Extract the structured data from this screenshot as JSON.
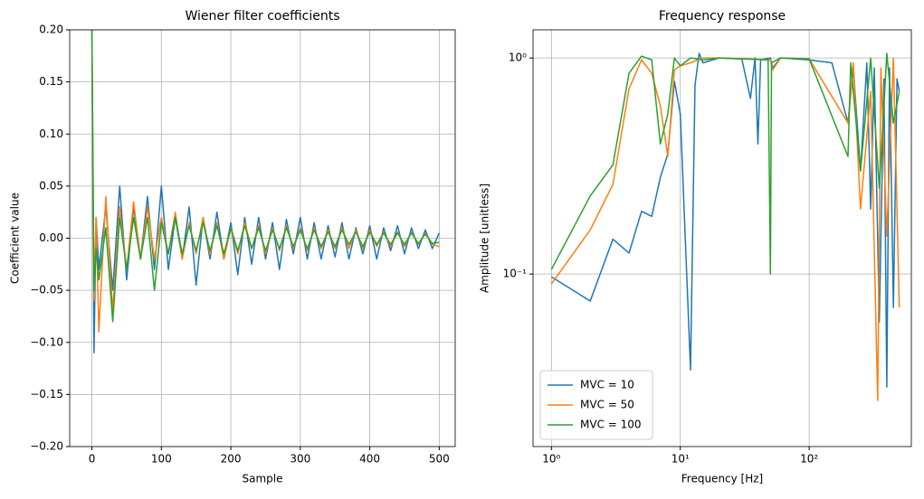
{
  "chart_data": [
    {
      "type": "line",
      "title": "Wiener filter coefficients",
      "xlabel": "Sample",
      "ylabel": "Coefficient value",
      "xlim": [
        -32,
        523
      ],
      "ylim": [
        -0.2,
        0.2
      ],
      "xticks": [
        0,
        100,
        200,
        300,
        400,
        500
      ],
      "yticks": [
        {
          "value": -0.2,
          "label": "−0.20"
        },
        {
          "value": -0.15,
          "label": "−0.15"
        },
        {
          "value": -0.1,
          "label": "−0.10"
        },
        {
          "value": -0.05,
          "label": "−0.05"
        },
        {
          "value": 0,
          "label": "0.00"
        },
        {
          "value": 0.05,
          "label": "0.05"
        },
        {
          "value": 0.1,
          "label": "0.10"
        },
        {
          "value": 0.15,
          "label": "0.15"
        },
        {
          "value": 0.2,
          "label": "0.20"
        }
      ],
      "grid": true,
      "x": [
        0,
        3,
        6,
        10,
        20,
        30,
        40,
        50,
        60,
        70,
        80,
        90,
        100,
        110,
        120,
        130,
        140,
        150,
        160,
        170,
        180,
        190,
        200,
        210,
        220,
        230,
        240,
        250,
        260,
        270,
        280,
        290,
        300,
        310,
        320,
        330,
        340,
        350,
        360,
        370,
        380,
        390,
        400,
        410,
        420,
        430,
        440,
        450,
        460,
        470,
        480,
        490,
        500
      ],
      "series": [
        {
          "color": "#1f77b4",
          "values": [
            0.2,
            -0.11,
            0.02,
            -0.03,
            0.03,
            -0.05,
            0.05,
            -0.04,
            0.03,
            -0.02,
            0.04,
            -0.03,
            0.05,
            -0.03,
            0.02,
            -0.02,
            0.03,
            -0.045,
            0.02,
            -0.02,
            0.025,
            -0.02,
            0.015,
            -0.035,
            0.02,
            -0.025,
            0.02,
            -0.02,
            0.015,
            -0.03,
            0.018,
            -0.015,
            0.02,
            -0.02,
            0.015,
            -0.02,
            0.012,
            -0.018,
            0.015,
            -0.02,
            0.01,
            -0.015,
            0.012,
            -0.02,
            0.01,
            -0.012,
            0.012,
            -0.015,
            0.01,
            -0.01,
            0.008,
            -0.01,
            0.005
          ]
        },
        {
          "color": "#ff7f0e",
          "values": [
            0.2,
            -0.06,
            0.02,
            -0.09,
            0.04,
            -0.07,
            0.03,
            -0.03,
            0.035,
            -0.02,
            0.03,
            -0.02,
            0.02,
            -0.015,
            0.025,
            -0.02,
            0.015,
            -0.015,
            0.02,
            -0.015,
            0.015,
            -0.02,
            0.01,
            -0.015,
            0.015,
            -0.01,
            0.012,
            -0.015,
            0.01,
            -0.012,
            0.012,
            -0.01,
            0.01,
            -0.012,
            0.01,
            -0.01,
            0.008,
            -0.01,
            0.01,
            -0.01,
            0.008,
            -0.01,
            0.008,
            -0.008,
            0.006,
            -0.008,
            0.006,
            -0.008,
            0.006,
            -0.006,
            0.005,
            -0.006,
            -0.008
          ]
        },
        {
          "color": "#2ca02c",
          "values": [
            0.2,
            -0.05,
            -0.01,
            -0.04,
            0.01,
            -0.08,
            0.02,
            -0.03,
            0.02,
            -0.02,
            0.02,
            -0.05,
            0.015,
            -0.015,
            0.02,
            -0.015,
            0.012,
            -0.012,
            0.015,
            -0.012,
            0.012,
            -0.015,
            0.01,
            -0.012,
            0.012,
            -0.01,
            0.01,
            -0.012,
            0.008,
            -0.01,
            0.01,
            -0.008,
            0.008,
            -0.01,
            0.008,
            -0.008,
            0.006,
            -0.008,
            0.008,
            -0.006,
            0.006,
            -0.008,
            0.006,
            -0.006,
            0.005,
            -0.006,
            0.005,
            -0.006,
            0.005,
            -0.005,
            0.004,
            -0.005,
            -0.004
          ]
        }
      ]
    },
    {
      "type": "line",
      "title": "Frequency response",
      "xlabel": "Frequency [Hz]",
      "ylabel": "Amplitude [unitless]",
      "xscale": "log",
      "yscale": "log",
      "xlim": [
        0.72,
        620
      ],
      "ylim": [
        0.0159,
        1.35
      ],
      "xticks": [
        {
          "value": 1,
          "label": "10⁰"
        },
        {
          "value": 10,
          "label": "10¹"
        },
        {
          "value": 100,
          "label": "10²"
        }
      ],
      "yticks": [
        {
          "value": 0.1,
          "label": "10⁻¹"
        },
        {
          "value": 1,
          "label": "10⁰"
        }
      ],
      "grid": true,
      "legend": "lower left",
      "series": [
        {
          "name": "MVC = 10",
          "color": "#1f77b4",
          "x": [
            1,
            2,
            3,
            4,
            5,
            6,
            7,
            8,
            9,
            10,
            12,
            13,
            14,
            15,
            20,
            30,
            35,
            38,
            40,
            42,
            50,
            52,
            60,
            100,
            150,
            200,
            220,
            250,
            280,
            300,
            320,
            350,
            380,
            400,
            420,
            450,
            480,
            500
          ],
          "values": [
            0.097,
            0.075,
            0.145,
            0.125,
            0.195,
            0.185,
            0.28,
            0.36,
            0.78,
            0.55,
            0.036,
            0.75,
            1.05,
            0.95,
            1.0,
            0.99,
            0.65,
            1.0,
            0.4,
            0.98,
            1.0,
            0.9,
            1.0,
            0.98,
            0.95,
            0.5,
            0.9,
            0.3,
            0.95,
            0.2,
            0.9,
            0.06,
            0.8,
            0.03,
            0.9,
            0.07,
            0.8,
            0.7
          ]
        },
        {
          "name": "MVC = 50",
          "color": "#ff7f0e",
          "x": [
            1,
            2,
            3,
            4,
            5,
            6,
            7,
            8,
            9,
            10,
            12,
            15,
            20,
            50,
            52,
            60,
            100,
            200,
            220,
            250,
            300,
            340,
            360,
            400,
            450,
            500
          ],
          "values": [
            0.09,
            0.16,
            0.26,
            0.72,
            0.98,
            0.85,
            0.6,
            0.35,
            0.88,
            0.92,
            0.95,
            1.0,
            1.0,
            0.98,
            0.88,
            1.0,
            0.99,
            0.5,
            0.95,
            0.2,
            0.7,
            0.026,
            0.9,
            0.15,
            1.0,
            0.07
          ]
        },
        {
          "name": "MVC = 100",
          "color": "#2ca02c",
          "x": [
            1,
            2,
            3,
            4,
            5,
            6,
            7,
            8,
            9,
            10,
            12,
            15,
            20,
            48,
            50,
            51,
            60,
            100,
            200,
            210,
            250,
            300,
            350,
            400,
            450,
            500
          ],
          "values": [
            0.105,
            0.23,
            0.32,
            0.85,
            1.02,
            0.98,
            0.4,
            0.55,
            1.0,
            0.92,
            1.0,
            0.98,
            1.0,
            0.98,
            0.1,
            0.95,
            1.0,
            0.99,
            0.35,
            0.95,
            0.3,
            1.0,
            0.25,
            1.05,
            0.5,
            0.7
          ]
        }
      ]
    }
  ]
}
